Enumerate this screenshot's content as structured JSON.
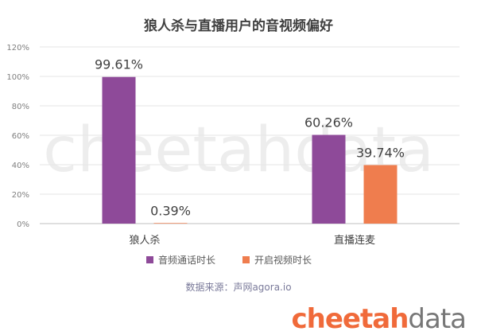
{
  "title": "狼人杀与直播用户的音视频偏好",
  "source": "数据来源：声网agora.io",
  "logo": {
    "part1": "cheetah",
    "part2": "data"
  },
  "watermark": "cheetahdata",
  "chart_data": {
    "type": "bar",
    "categories": [
      "狼人杀",
      "直播连麦"
    ],
    "series": [
      {
        "name": "音频通话时长",
        "values": [
          99.61,
          60.26
        ],
        "labels": [
          "99.61%",
          "60.26%"
        ],
        "color": "#8e4a99"
      },
      {
        "name": "开启视频时长",
        "values": [
          0.39,
          39.74
        ],
        "labels": [
          "0.39%",
          "39.74%"
        ],
        "color": "#ef7d4e"
      }
    ],
    "ylim": [
      0,
      120
    ],
    "yticks": [
      "0%",
      "20%",
      "40%",
      "60%",
      "80%",
      "100%",
      "120%"
    ],
    "grid": true,
    "legend": "bottom"
  }
}
